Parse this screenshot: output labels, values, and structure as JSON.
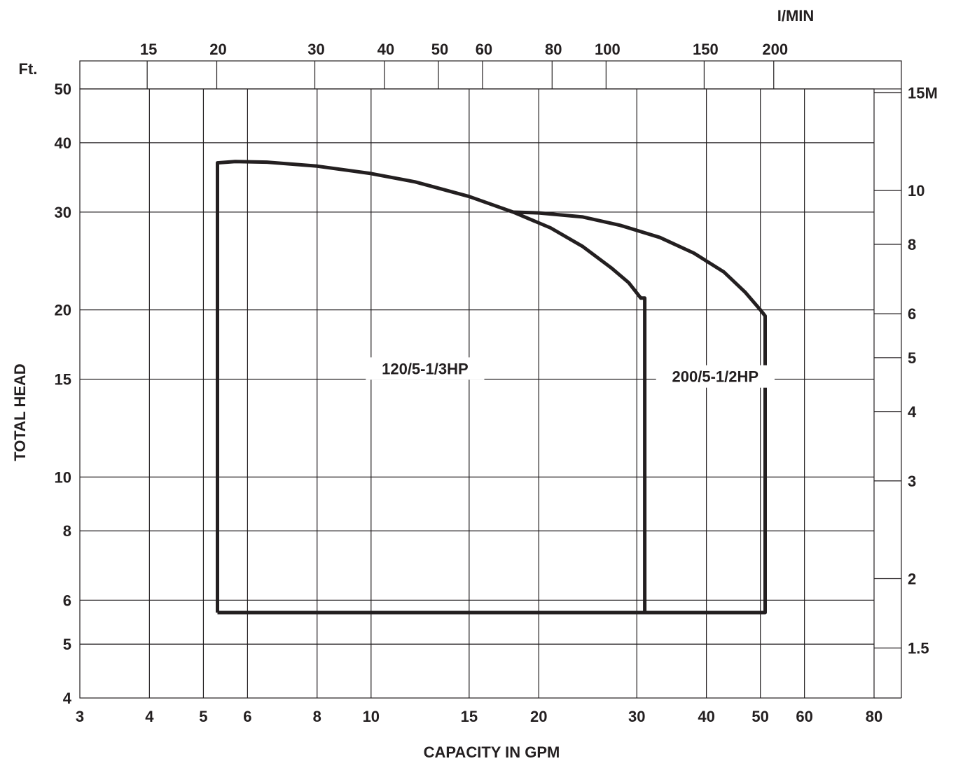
{
  "chart_data": {
    "type": "line",
    "title": "",
    "xlabel": "CAPACITY IN GPM",
    "ylabel": "TOTAL HEAD",
    "x_scale": "log",
    "y_scale": "log",
    "xlim": [
      3,
      80
    ],
    "ylim": [
      4,
      50
    ],
    "grid": true,
    "x_ticks": [
      3,
      4,
      5,
      6,
      8,
      10,
      15,
      20,
      30,
      40,
      50,
      60,
      80
    ],
    "x_tick_labels": [
      "3",
      "4",
      "5",
      "6",
      "8",
      "10",
      "15",
      "20",
      "30",
      "40",
      "50",
      "60",
      "80"
    ],
    "y_ticks": [
      4,
      5,
      6,
      8,
      10,
      15,
      20,
      30,
      40,
      50
    ],
    "y_tick_labels": [
      "4",
      "5",
      "6",
      "8",
      "10",
      "15",
      "20",
      "30",
      "40",
      "50"
    ],
    "y_unit_label": "Ft.",
    "top_axis": {
      "label": "I/MIN",
      "ticks": [
        15,
        20,
        30,
        40,
        50,
        60,
        80,
        100,
        150,
        200
      ],
      "tick_labels": [
        "15",
        "20",
        "30",
        "40",
        "50",
        "60",
        "80",
        "100",
        "150",
        "200"
      ]
    },
    "right_axis": {
      "ticks": [
        15,
        10,
        8,
        6,
        5,
        4,
        3,
        2,
        1.5
      ],
      "tick_labels": [
        "15M",
        "10",
        "8",
        "6",
        "5",
        "4",
        "3",
        "2",
        "1.5"
      ]
    },
    "series": [
      {
        "name": "120/5-1/3HP",
        "label_pos": [
          12.5,
          15.5
        ],
        "points": [
          [
            5.3,
            5.7
          ],
          [
            5.3,
            36.8
          ],
          [
            5.7,
            37.0
          ],
          [
            6.5,
            36.9
          ],
          [
            8,
            36.3
          ],
          [
            10,
            35.2
          ],
          [
            12,
            34.0
          ],
          [
            15,
            32.0
          ],
          [
            18,
            30.0
          ],
          [
            21,
            28.1
          ],
          [
            24,
            26.0
          ],
          [
            27,
            23.8
          ],
          [
            29,
            22.4
          ],
          [
            30.5,
            21.0
          ],
          [
            31,
            21.0
          ],
          [
            31,
            5.7
          ],
          [
            5.3,
            5.7
          ]
        ]
      },
      {
        "name": "200/5-1/2HP",
        "label_pos": [
          41.5,
          15.0
        ],
        "points": [
          [
            18,
            30.0
          ],
          [
            20,
            29.9
          ],
          [
            24,
            29.4
          ],
          [
            28,
            28.4
          ],
          [
            33,
            27.0
          ],
          [
            38,
            25.3
          ],
          [
            43,
            23.4
          ],
          [
            47,
            21.5
          ],
          [
            50,
            20.0
          ],
          [
            51,
            19.5
          ],
          [
            51,
            5.7
          ],
          [
            31,
            5.7
          ]
        ]
      }
    ]
  }
}
